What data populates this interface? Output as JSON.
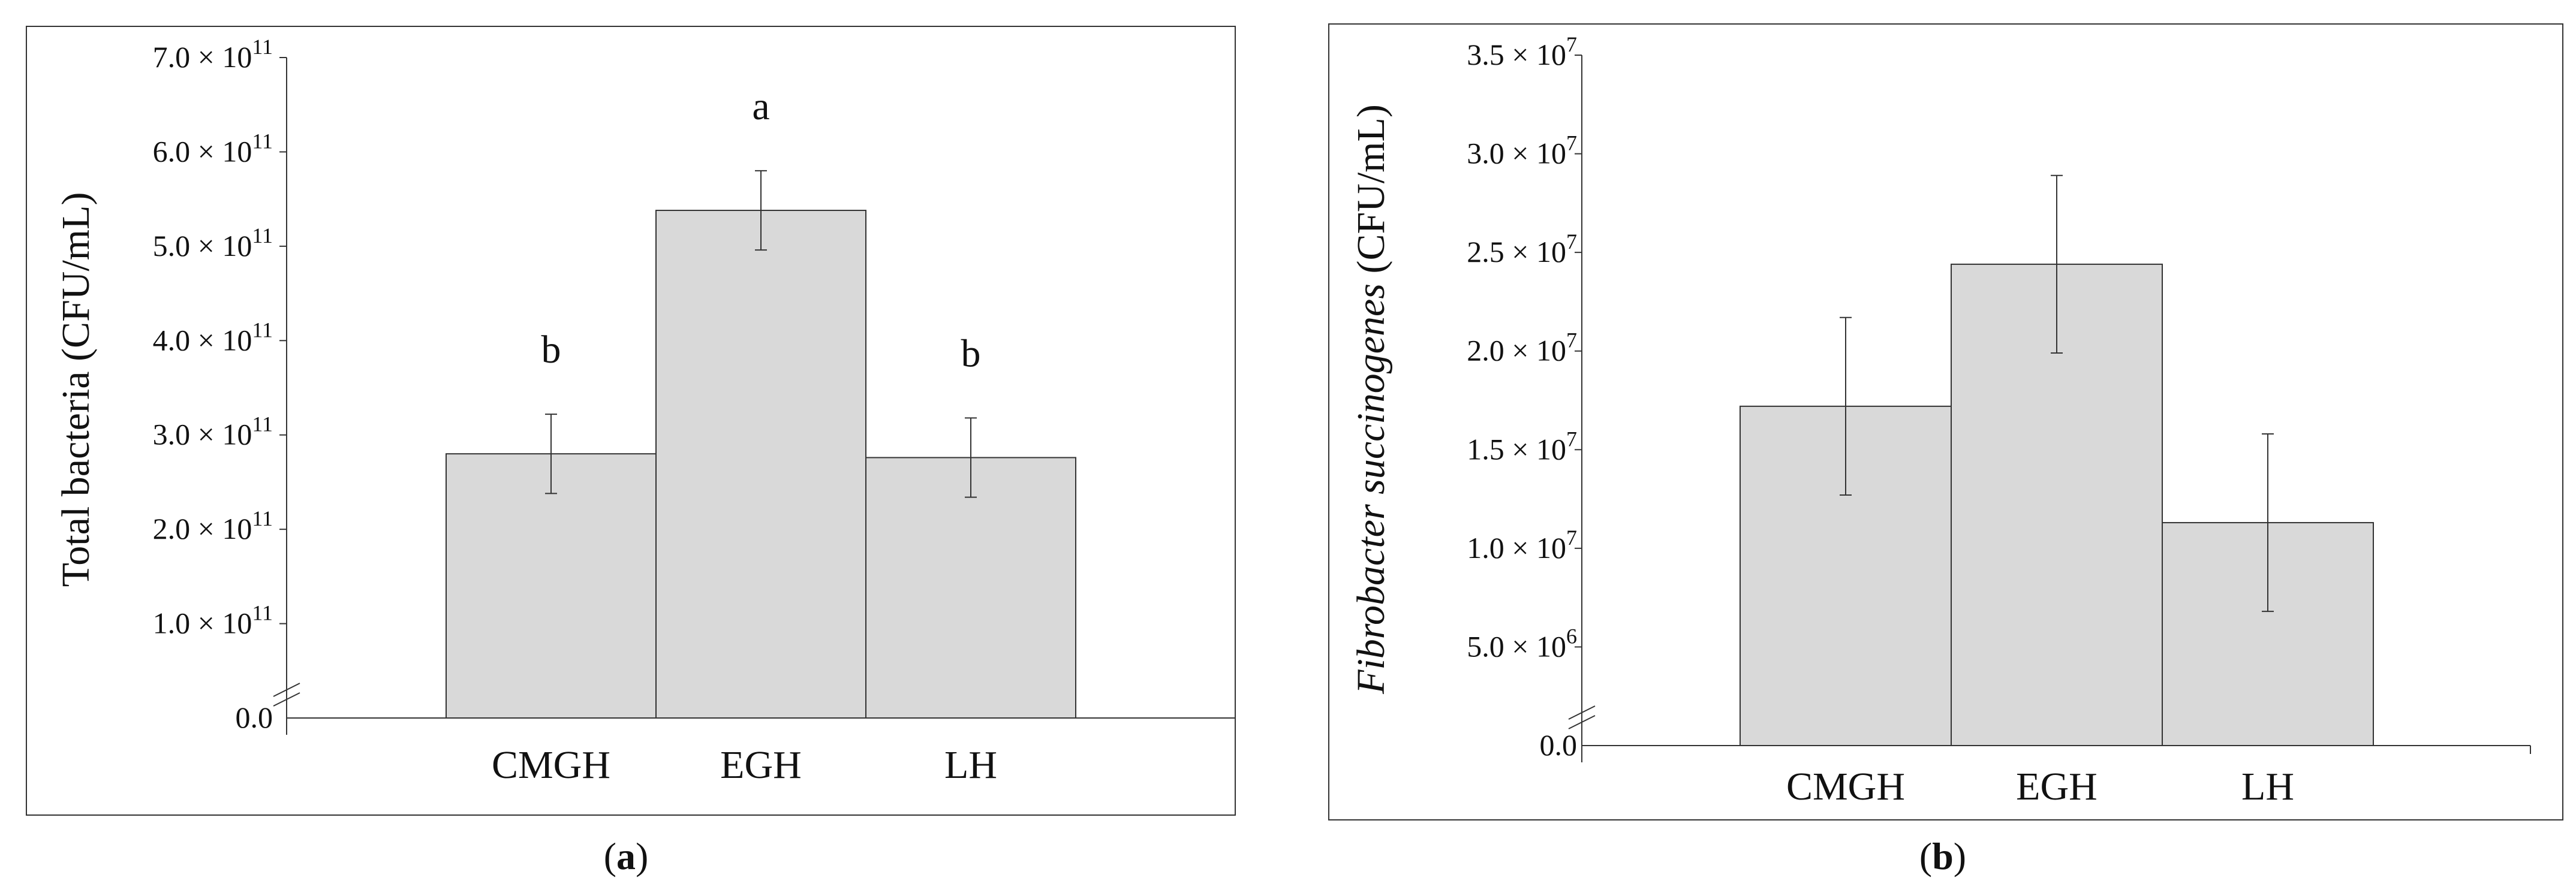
{
  "chart_data": [
    {
      "type": "bar",
      "panel_label": "a",
      "categories": [
        "CMGH",
        "EGH",
        "LH"
      ],
      "values": [
        280000000000.0,
        538000000000.0,
        276000000000.0
      ],
      "errors": [
        42000000000.0,
        42000000000.0,
        42000000000.0
      ],
      "significance": [
        "b",
        "a",
        "b"
      ],
      "ylabel": "Total bacteria (CFU/mL)",
      "ylim": [
        0,
        700000000000.0
      ],
      "yticks": [
        0,
        100000000000.0,
        200000000000.0,
        300000000000.0,
        400000000000.0,
        500000000000.0,
        600000000000.0,
        700000000000.0
      ],
      "ytick_labels": [
        {
          "mantissa": "0.0",
          "exponent": ""
        },
        {
          "mantissa": "1.0 × 10",
          "exponent": "11"
        },
        {
          "mantissa": "2.0 × 10",
          "exponent": "11"
        },
        {
          "mantissa": "3.0 × 10",
          "exponent": "11"
        },
        {
          "mantissa": "4.0 × 10",
          "exponent": "11"
        },
        {
          "mantissa": "5.0 × 10",
          "exponent": "11"
        },
        {
          "mantissa": "6.0 × 10",
          "exponent": "11"
        },
        {
          "mantissa": "7.0 × 10",
          "exponent": "11"
        }
      ],
      "bar_color": "#d9d9d9",
      "axis_break": true,
      "grid": false
    },
    {
      "type": "bar",
      "panel_label": "b",
      "categories": [
        "CMGH",
        "EGH",
        "LH"
      ],
      "values": [
        17200000.0,
        24400000.0,
        11300000.0
      ],
      "errors": [
        4500000.0,
        4500000.0,
        4500000.0
      ],
      "significance": [],
      "ylabel_italic": "Fibrobacter succinogenes",
      "ylabel_rest": "(CFU/mL)",
      "ylim": [
        0,
        35000000.0
      ],
      "yticks": [
        0,
        5000000.0,
        10000000.0,
        15000000.0,
        20000000.0,
        25000000.0,
        30000000.0,
        35000000.0
      ],
      "ytick_labels": [
        {
          "mantissa": "0.0",
          "exponent": ""
        },
        {
          "mantissa": "5.0 × 10",
          "exponent": "6"
        },
        {
          "mantissa": "1.0 × 10",
          "exponent": "7"
        },
        {
          "mantissa": "1.5 × 10",
          "exponent": "7"
        },
        {
          "mantissa": "2.0 × 10",
          "exponent": "7"
        },
        {
          "mantissa": "2.5 × 10",
          "exponent": "7"
        },
        {
          "mantissa": "3.0 × 10",
          "exponent": "7"
        },
        {
          "mantissa": "3.5 × 10",
          "exponent": "7"
        }
      ],
      "bar_color": "#d9d9d9",
      "axis_break": true,
      "grid": false
    }
  ]
}
